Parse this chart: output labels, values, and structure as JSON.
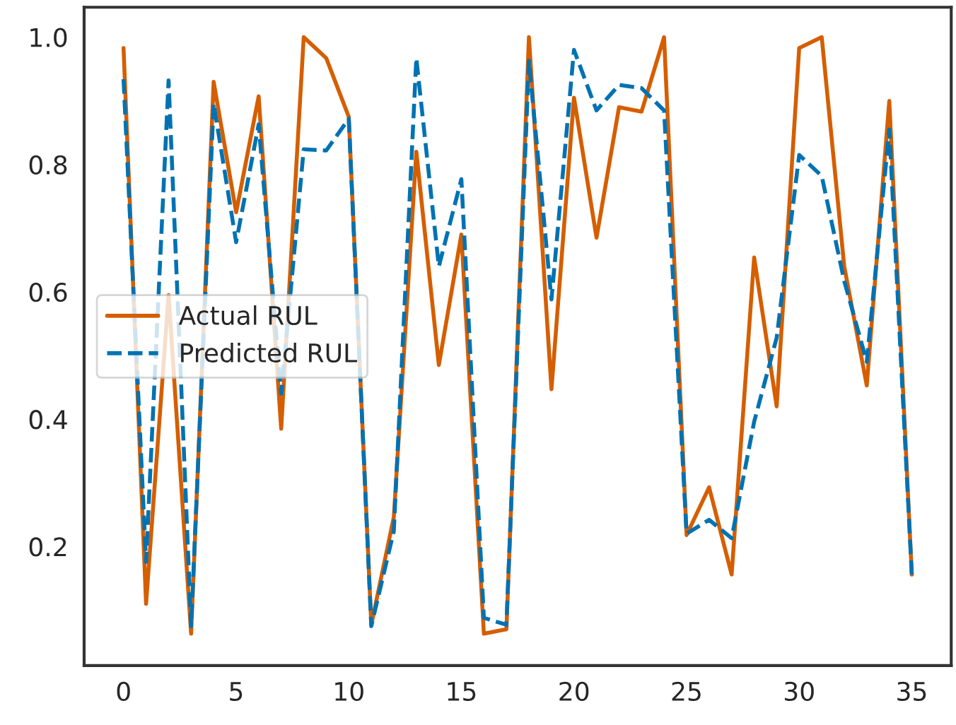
{
  "chart_data": {
    "type": "line",
    "x": [
      0,
      1,
      2,
      3,
      4,
      5,
      6,
      7,
      8,
      9,
      10,
      11,
      12,
      13,
      14,
      15,
      16,
      17,
      18,
      19,
      20,
      21,
      22,
      23,
      24,
      25,
      26,
      27,
      28,
      29,
      30,
      31,
      32,
      33,
      34,
      35
    ],
    "series": [
      {
        "name": "Actual RUL",
        "color": "#d55e00",
        "line_style": "solid",
        "values": [
          0.983,
          0.11,
          0.595,
          0.063,
          0.93,
          0.725,
          0.907,
          0.385,
          1.0,
          0.967,
          0.875,
          0.077,
          0.246,
          0.82,
          0.485,
          0.69,
          0.063,
          0.07,
          1.0,
          0.447,
          0.905,
          0.685,
          0.89,
          0.883,
          1.0,
          0.218,
          0.293,
          0.156,
          0.654,
          0.42,
          0.983,
          1.0,
          0.64,
          0.453,
          0.9,
          0.156
        ]
      },
      {
        "name": "Predicted RUL",
        "color": "#0072b2",
        "line_style": "dashed",
        "values": [
          0.934,
          0.176,
          0.932,
          0.075,
          0.896,
          0.678,
          0.863,
          0.44,
          0.824,
          0.822,
          0.872,
          0.075,
          0.224,
          0.967,
          0.64,
          0.777,
          0.088,
          0.077,
          0.963,
          0.588,
          0.98,
          0.885,
          0.925,
          0.92,
          0.885,
          0.22,
          0.242,
          0.213,
          0.396,
          0.528,
          0.815,
          0.782,
          0.617,
          0.49,
          0.855,
          0.156
        ]
      }
    ],
    "xlim": [
      -1.75,
      36.75
    ],
    "ylim": [
      0.013,
      1.047
    ],
    "xticks": [
      0,
      5,
      10,
      15,
      20,
      25,
      30,
      35
    ],
    "yticks": [
      0.2,
      0.4,
      0.6,
      0.8,
      {
        "value": 1.0,
        "label": "1.0"
      }
    ],
    "grid": false,
    "legend": "center left",
    "marker": "none"
  }
}
